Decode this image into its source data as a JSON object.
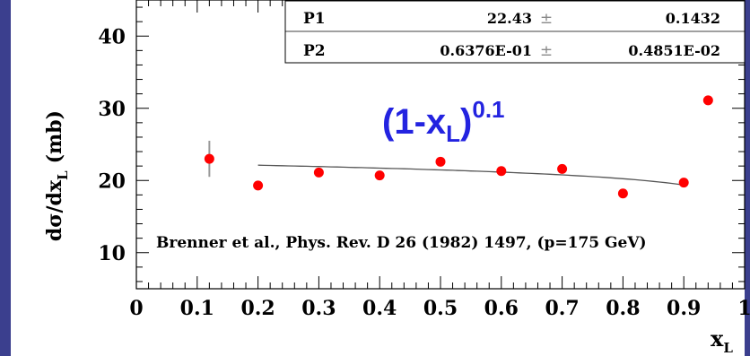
{
  "chart_data": {
    "type": "scatter",
    "xlabel_main": "x",
    "xlabel_sub": "L",
    "ylabel_main": "dσ/dx",
    "ylabel_sub": "L",
    "ylabel_unit": "(mb)",
    "xlim": [
      0,
      1
    ],
    "ylim": [
      5,
      45
    ],
    "x_ticks": [
      "0",
      "0.1",
      "0.2",
      "0.3",
      "0.4",
      "0.5",
      "0.6",
      "0.7",
      "0.8",
      "0.9",
      "1"
    ],
    "x_tick_values": [
      0,
      0.1,
      0.2,
      0.3,
      0.4,
      0.5,
      0.6,
      0.7,
      0.8,
      0.9,
      1
    ],
    "y_ticks": [
      "10",
      "20",
      "30",
      "40"
    ],
    "y_tick_values": [
      10,
      20,
      30,
      40
    ],
    "series": [
      {
        "color": "#ff0000",
        "points": [
          {
            "x": 0.12,
            "y": 23.0,
            "err": 2.5
          },
          {
            "x": 0.2,
            "y": 19.3
          },
          {
            "x": 0.3,
            "y": 21.1
          },
          {
            "x": 0.4,
            "y": 20.7
          },
          {
            "x": 0.5,
            "y": 22.6
          },
          {
            "x": 0.6,
            "y": 21.3
          },
          {
            "x": 0.7,
            "y": 21.6
          },
          {
            "x": 0.8,
            "y": 18.2
          },
          {
            "x": 0.9,
            "y": 19.7
          },
          {
            "x": 0.94,
            "y": 31.1
          }
        ]
      }
    ],
    "fit": {
      "color": "#555555",
      "x_range": [
        0.2,
        0.9
      ],
      "p1": 22.43,
      "p2": 0.06376
    },
    "stats_box": {
      "rows": [
        {
          "name": "P1",
          "value": "22.43",
          "pm": "±",
          "error": "0.1432"
        },
        {
          "name": "P2",
          "value": "0.6376E-01",
          "pm": "±",
          "error": "0.4851E-02"
        }
      ]
    },
    "formula": {
      "base": "(1-x",
      "sub": "L",
      "close": ")",
      "sup": "0.1",
      "color": "#2323e0"
    },
    "annotation": "Brenner et al., Phys. Rev. D 26 (1982) 1497, (p=175 GeV)"
  }
}
